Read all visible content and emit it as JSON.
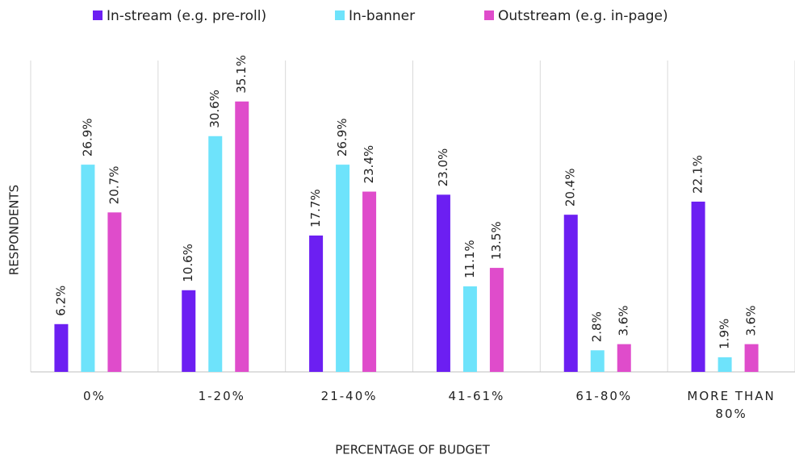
{
  "chart_data": {
    "type": "bar",
    "x_label": "PERCENTAGE OF BUDGET",
    "y_label": "RESPONDENTS",
    "categories": [
      "0%",
      "1-20%",
      "21-40%",
      "41-61%",
      "61-80%",
      "MORE THAN 80%"
    ],
    "series": [
      {
        "name": "In-stream (e.g. pre-roll)",
        "color": "#6c1ff2",
        "values": [
          6.2,
          10.6,
          17.7,
          23.0,
          20.4,
          22.1
        ],
        "value_labels": [
          "6.2%",
          "10.6%",
          "17.7%",
          "23.0%",
          "20.4%",
          "22.1%"
        ]
      },
      {
        "name": "In-banner",
        "color": "#6ee3fb",
        "values": [
          26.9,
          30.6,
          26.9,
          11.1,
          2.8,
          1.9
        ],
        "value_labels": [
          "26.9%",
          "30.6%",
          "26.9%",
          "11.1%",
          "2.8%",
          "1.9%"
        ]
      },
      {
        "name": "Outstream (e.g. in-page)",
        "color": "#df4ccb",
        "values": [
          20.7,
          35.1,
          23.4,
          13.5,
          3.6,
          3.6
        ],
        "value_labels": [
          "20.7%",
          "35.1%",
          "23.4%",
          "13.5%",
          "3.6%",
          "3.6%"
        ]
      }
    ]
  }
}
